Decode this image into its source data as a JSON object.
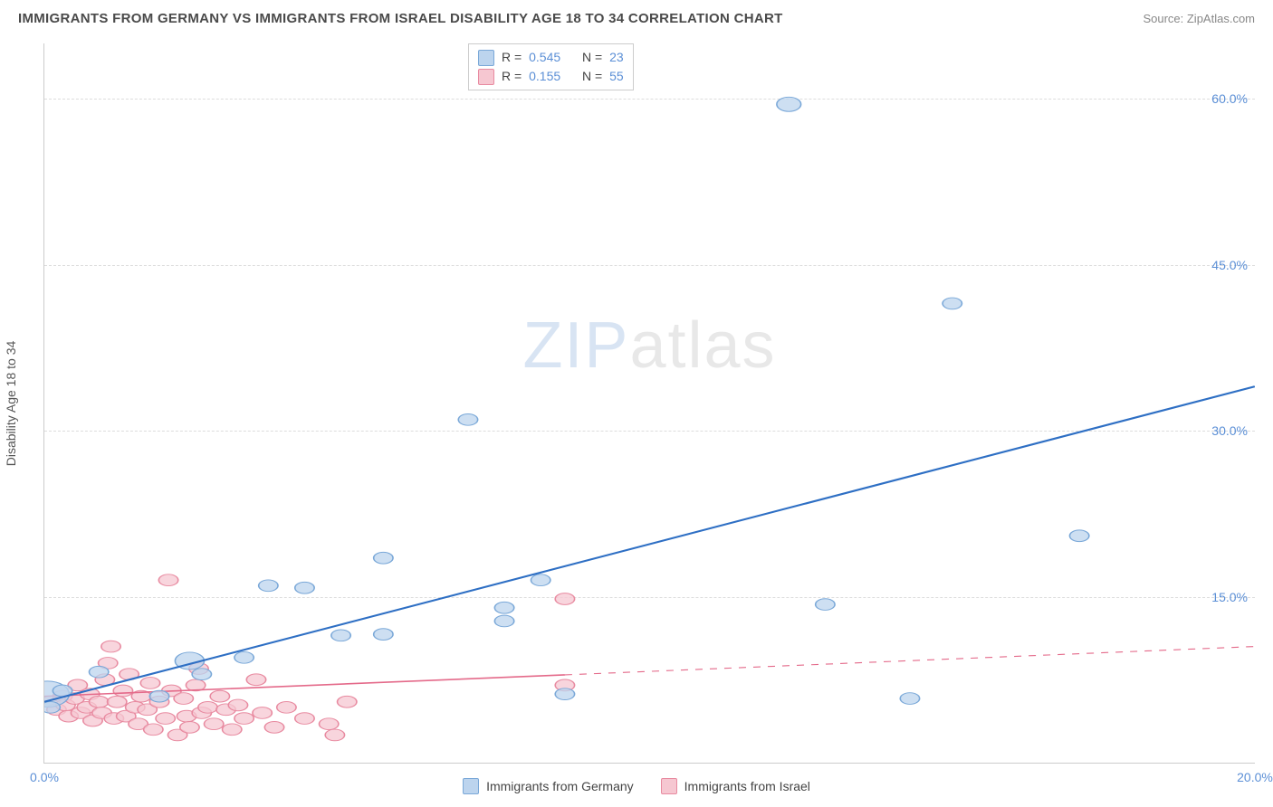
{
  "title": "IMMIGRANTS FROM GERMANY VS IMMIGRANTS FROM ISRAEL DISABILITY AGE 18 TO 34 CORRELATION CHART",
  "source": "Source: ZipAtlas.com",
  "watermark": {
    "z": "ZIP",
    "rest": "atlas"
  },
  "y_axis_label": "Disability Age 18 to 34",
  "chart": {
    "type": "scatter+regression",
    "xlim": [
      0,
      20
    ],
    "ylim": [
      0,
      65
    ],
    "y_ticks": [
      15,
      30,
      45,
      60
    ],
    "y_tick_labels": [
      "15.0%",
      "30.0%",
      "45.0%",
      "60.0%"
    ],
    "x_ticks": [
      0,
      20
    ],
    "x_tick_labels": [
      "0.0%",
      "20.0%"
    ],
    "background": "#ffffff",
    "grid_color": "#dddddd",
    "axis_line_color": "#cccccc",
    "tick_label_color": "#5b8fd6",
    "tick_label_fontsize": 14,
    "title_fontsize": 15,
    "title_color": "#4a4a4a",
    "series": [
      {
        "name": "Immigrants from Germany",
        "color_fill": "#bcd4ee",
        "color_stroke": "#7aa8d8",
        "line_color": "#2e6fc4",
        "line_width": 2.5,
        "line_dash_after": 20,
        "marker_radius": 8,
        "marker_opacity": 0.75,
        "R": "0.545",
        "N": "23",
        "regression": {
          "x1": 0,
          "y1": 5.5,
          "x2": 20,
          "y2": 34.0
        },
        "points": [
          {
            "x": 0.05,
            "y": 6.2,
            "r": 18
          },
          {
            "x": 0.1,
            "y": 5.0,
            "r": 8
          },
          {
            "x": 0.3,
            "y": 6.5,
            "r": 8
          },
          {
            "x": 0.9,
            "y": 8.2,
            "r": 8
          },
          {
            "x": 1.9,
            "y": 6.0,
            "r": 8
          },
          {
            "x": 2.4,
            "y": 9.2,
            "r": 12
          },
          {
            "x": 2.6,
            "y": 8.0,
            "r": 8
          },
          {
            "x": 3.3,
            "y": 9.5,
            "r": 8
          },
          {
            "x": 3.7,
            "y": 16.0,
            "r": 8
          },
          {
            "x": 4.3,
            "y": 15.8,
            "r": 8
          },
          {
            "x": 4.9,
            "y": 11.5,
            "r": 8
          },
          {
            "x": 5.6,
            "y": 11.6,
            "r": 8
          },
          {
            "x": 5.6,
            "y": 18.5,
            "r": 8
          },
          {
            "x": 7.0,
            "y": 31.0,
            "r": 8
          },
          {
            "x": 7.6,
            "y": 12.8,
            "r": 8
          },
          {
            "x": 7.6,
            "y": 14.0,
            "r": 8
          },
          {
            "x": 8.2,
            "y": 16.5,
            "r": 8
          },
          {
            "x": 8.6,
            "y": 6.2,
            "r": 8
          },
          {
            "x": 12.3,
            "y": 59.5,
            "r": 10
          },
          {
            "x": 12.9,
            "y": 14.3,
            "r": 8
          },
          {
            "x": 14.3,
            "y": 5.8,
            "r": 8
          },
          {
            "x": 15.0,
            "y": 41.5,
            "r": 8
          },
          {
            "x": 17.1,
            "y": 20.5,
            "r": 8
          }
        ]
      },
      {
        "name": "Immigrants from Israel",
        "color_fill": "#f6c7d1",
        "color_stroke": "#e88aa0",
        "line_color": "#e46a8a",
        "line_width": 2,
        "line_dash_after": 8.6,
        "marker_radius": 8,
        "marker_opacity": 0.75,
        "R": "0.155",
        "N": "55",
        "regression": {
          "x1": 0,
          "y1": 6.0,
          "x2": 20,
          "y2": 10.5
        },
        "points": [
          {
            "x": 0.1,
            "y": 5.5,
            "r": 8
          },
          {
            "x": 0.2,
            "y": 4.8,
            "r": 8
          },
          {
            "x": 0.3,
            "y": 6.0,
            "r": 8
          },
          {
            "x": 0.35,
            "y": 5.2,
            "r": 8
          },
          {
            "x": 0.4,
            "y": 4.2,
            "r": 8
          },
          {
            "x": 0.5,
            "y": 5.8,
            "r": 8
          },
          {
            "x": 0.55,
            "y": 7.0,
            "r": 8
          },
          {
            "x": 0.6,
            "y": 4.5,
            "r": 8
          },
          {
            "x": 0.7,
            "y": 5.0,
            "r": 8
          },
          {
            "x": 0.75,
            "y": 6.2,
            "r": 8
          },
          {
            "x": 0.8,
            "y": 3.8,
            "r": 8
          },
          {
            "x": 0.9,
            "y": 5.5,
            "r": 8
          },
          {
            "x": 0.95,
            "y": 4.5,
            "r": 8
          },
          {
            "x": 1.0,
            "y": 7.5,
            "r": 8
          },
          {
            "x": 1.05,
            "y": 9.0,
            "r": 8
          },
          {
            "x": 1.1,
            "y": 10.5,
            "r": 8
          },
          {
            "x": 1.15,
            "y": 4.0,
            "r": 8
          },
          {
            "x": 1.2,
            "y": 5.5,
            "r": 8
          },
          {
            "x": 1.3,
            "y": 6.5,
            "r": 8
          },
          {
            "x": 1.35,
            "y": 4.2,
            "r": 8
          },
          {
            "x": 1.4,
            "y": 8.0,
            "r": 8
          },
          {
            "x": 1.5,
            "y": 5.0,
            "r": 8
          },
          {
            "x": 1.55,
            "y": 3.5,
            "r": 8
          },
          {
            "x": 1.6,
            "y": 6.0,
            "r": 8
          },
          {
            "x": 1.7,
            "y": 4.8,
            "r": 8
          },
          {
            "x": 1.75,
            "y": 7.2,
            "r": 8
          },
          {
            "x": 1.8,
            "y": 3.0,
            "r": 8
          },
          {
            "x": 1.9,
            "y": 5.5,
            "r": 8
          },
          {
            "x": 2.0,
            "y": 4.0,
            "r": 8
          },
          {
            "x": 2.05,
            "y": 16.5,
            "r": 8
          },
          {
            "x": 2.1,
            "y": 6.5,
            "r": 8
          },
          {
            "x": 2.2,
            "y": 2.5,
            "r": 8
          },
          {
            "x": 2.3,
            "y": 5.8,
            "r": 8
          },
          {
            "x": 2.35,
            "y": 4.2,
            "r": 8
          },
          {
            "x": 2.4,
            "y": 3.2,
            "r": 8
          },
          {
            "x": 2.5,
            "y": 7.0,
            "r": 8
          },
          {
            "x": 2.55,
            "y": 8.5,
            "r": 8
          },
          {
            "x": 2.6,
            "y": 4.5,
            "r": 8
          },
          {
            "x": 2.7,
            "y": 5.0,
            "r": 8
          },
          {
            "x": 2.8,
            "y": 3.5,
            "r": 8
          },
          {
            "x": 2.9,
            "y": 6.0,
            "r": 8
          },
          {
            "x": 3.0,
            "y": 4.8,
            "r": 8
          },
          {
            "x": 3.1,
            "y": 3.0,
            "r": 8
          },
          {
            "x": 3.2,
            "y": 5.2,
            "r": 8
          },
          {
            "x": 3.3,
            "y": 4.0,
            "r": 8
          },
          {
            "x": 3.5,
            "y": 7.5,
            "r": 8
          },
          {
            "x": 3.6,
            "y": 4.5,
            "r": 8
          },
          {
            "x": 3.8,
            "y": 3.2,
            "r": 8
          },
          {
            "x": 4.0,
            "y": 5.0,
            "r": 8
          },
          {
            "x": 4.3,
            "y": 4.0,
            "r": 8
          },
          {
            "x": 4.7,
            "y": 3.5,
            "r": 8
          },
          {
            "x": 4.8,
            "y": 2.5,
            "r": 8
          },
          {
            "x": 5.0,
            "y": 5.5,
            "r": 8
          },
          {
            "x": 8.6,
            "y": 14.8,
            "r": 8
          },
          {
            "x": 8.6,
            "y": 7.0,
            "r": 8
          }
        ]
      }
    ]
  },
  "stats_legend_labels": {
    "R": "R =",
    "N": "N ="
  },
  "bottom_legend": [
    {
      "label": "Immigrants from Germany",
      "fill": "#bcd4ee",
      "stroke": "#7aa8d8"
    },
    {
      "label": "Immigrants from Israel",
      "fill": "#f6c7d1",
      "stroke": "#e88aa0"
    }
  ]
}
